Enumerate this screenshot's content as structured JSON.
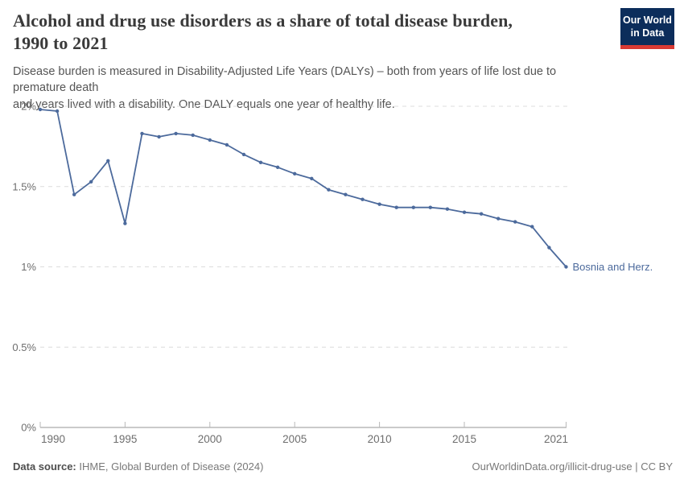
{
  "header": {
    "title_lines": [
      "Alcohol and drug use disorders as a share of total disease burden,",
      "1990 to 2021"
    ],
    "subtitle_lines": [
      "Disease burden is measured in Disability-Adjusted Life Years (DALYs) – both from years of life lost due to premature death",
      "and years lived with a disability. One DALY equals one year of healthy life."
    ]
  },
  "logo": {
    "line1": "Our World",
    "line2": "in Data",
    "bg_color": "#0C2D5B",
    "stripe_color": "#D93A34"
  },
  "chart_data": {
    "type": "line",
    "title": "Alcohol and drug use disorders as a share of total disease burden, 1990 to 2021",
    "unit": "%",
    "grid": "horizontal-dashed",
    "legend_position": "end-of-line-label",
    "ylim": [
      0,
      2
    ],
    "x": [
      1990,
      1991,
      1992,
      1993,
      1994,
      1995,
      1996,
      1997,
      1998,
      1999,
      2000,
      2001,
      2002,
      2003,
      2004,
      2005,
      2006,
      2007,
      2008,
      2009,
      2010,
      2011,
      2012,
      2013,
      2014,
      2015,
      2016,
      2017,
      2018,
      2019,
      2020,
      2021
    ],
    "series": [
      {
        "name": "Bosnia and Herz.",
        "color": "#4C6A9C",
        "values": [
          1.98,
          1.97,
          1.45,
          1.53,
          1.66,
          1.27,
          1.83,
          1.81,
          1.83,
          1.82,
          1.79,
          1.76,
          1.7,
          1.65,
          1.62,
          1.58,
          1.55,
          1.48,
          1.45,
          1.42,
          1.39,
          1.37,
          1.37,
          1.37,
          1.36,
          1.34,
          1.33,
          1.3,
          1.28,
          1.25,
          1.12,
          1.0
        ]
      }
    ],
    "yticks": [
      {
        "v": 0,
        "label": "0%"
      },
      {
        "v": 0.5,
        "label": "0.5%"
      },
      {
        "v": 1,
        "label": "1%"
      },
      {
        "v": 1.5,
        "label": "1.5%"
      },
      {
        "v": 2,
        "label": "2%"
      }
    ],
    "xticks": [
      {
        "v": 1990,
        "label": "1990",
        "align": "start"
      },
      {
        "v": 1995,
        "label": "1995",
        "align": "middle"
      },
      {
        "v": 2000,
        "label": "2000",
        "align": "middle"
      },
      {
        "v": 2005,
        "label": "2005",
        "align": "middle"
      },
      {
        "v": 2010,
        "label": "2010",
        "align": "middle"
      },
      {
        "v": 2015,
        "label": "2015",
        "align": "middle"
      },
      {
        "v": 2021,
        "label": "2021",
        "align": "end"
      }
    ]
  },
  "footer": {
    "source_label": "Data source:",
    "source_text": " IHME, Global Burden of Disease (2024)",
    "credit": "OurWorldinData.org/illicit-drug-use | CC BY"
  }
}
